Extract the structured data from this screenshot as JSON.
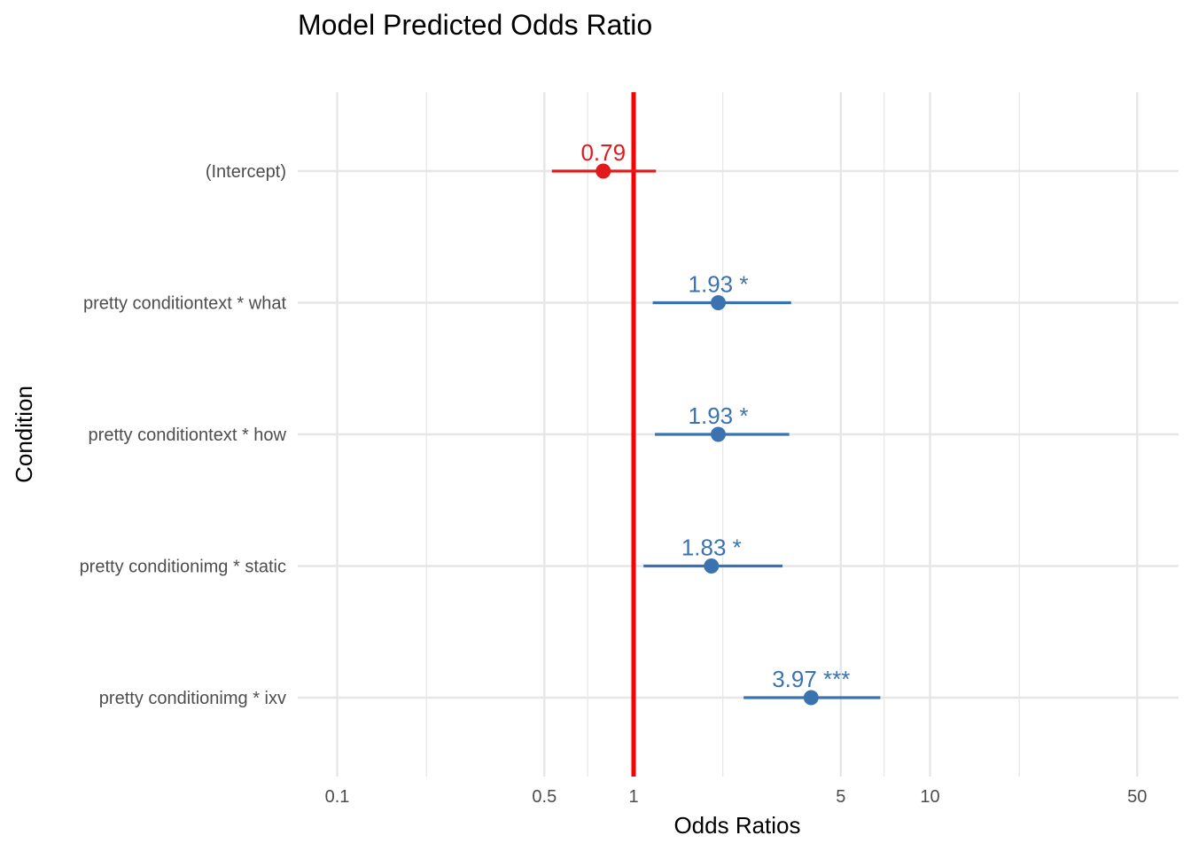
{
  "chart_data": {
    "type": "scatter",
    "title": "Model Predicted Odds Ratio",
    "xlabel": "Odds Ratios",
    "ylabel": "Condition",
    "x_scale": "log10",
    "xlim": [
      0.08,
      60
    ],
    "x_ticks": [
      0.1,
      0.5,
      1,
      5,
      10,
      50
    ],
    "x_tick_labels": [
      "0.1",
      "0.5",
      "1",
      "5",
      "10",
      "50"
    ],
    "x_minor_gridlines": [
      0.2,
      0.7,
      2,
      7,
      20
    ],
    "reference_line": {
      "x": 1,
      "color": "#ff0000"
    },
    "grid": true,
    "colors": {
      "negative": "#e31a1c",
      "positive": "#3b73b0",
      "grid": "#e6e6e6"
    },
    "points": [
      {
        "category": "(Intercept)",
        "estimate": 0.79,
        "ci_low": 0.53,
        "ci_high": 1.19,
        "label": "0.79",
        "direction": "negative"
      },
      {
        "category": "pretty conditiontext * what",
        "estimate": 1.93,
        "ci_low": 1.16,
        "ci_high": 3.4,
        "label": "1.93 *",
        "direction": "positive"
      },
      {
        "category": "pretty conditiontext * how",
        "estimate": 1.93,
        "ci_low": 1.18,
        "ci_high": 3.35,
        "label": "1.93 *",
        "direction": "positive"
      },
      {
        "category": "pretty conditionimg * static",
        "estimate": 1.83,
        "ci_low": 1.08,
        "ci_high": 3.18,
        "label": "1.83 *",
        "direction": "positive"
      },
      {
        "category": "pretty conditionimg * ixv",
        "estimate": 3.97,
        "ci_low": 2.35,
        "ci_high": 6.8,
        "label": "3.97 ***",
        "direction": "positive"
      }
    ]
  }
}
